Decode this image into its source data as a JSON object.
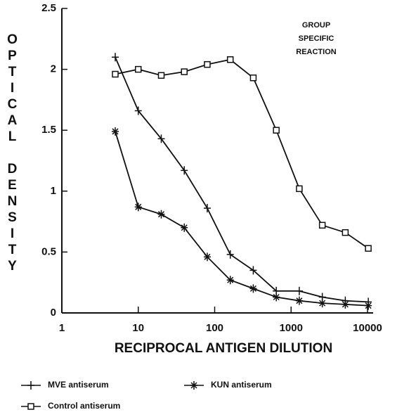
{
  "chart_data": {
    "type": "line",
    "xlabel": "RECIPROCAL ANTIGEN DILUTION",
    "ylabel": "OPTICAL DENSITY",
    "annotation": [
      "GROUP",
      "SPECIFIC",
      "REACTION"
    ],
    "x": [
      5,
      10,
      20,
      40,
      80,
      160,
      320,
      640,
      1280,
      2560,
      5120,
      10240
    ],
    "series": [
      {
        "name": "MVE antiserum",
        "color": "#111111",
        "marker": "plus",
        "values": [
          2.1,
          1.66,
          1.43,
          1.17,
          0.86,
          0.48,
          0.35,
          0.18,
          0.18,
          0.13,
          0.1,
          0.09
        ]
      },
      {
        "name": "KUN antiserum",
        "color": "#111111",
        "marker": "star",
        "values": [
          1.49,
          0.87,
          0.81,
          0.7,
          0.46,
          0.27,
          0.2,
          0.13,
          0.1,
          0.08,
          0.07,
          0.06
        ]
      },
      {
        "name": "Control antiserum",
        "color": "#111111",
        "marker": "square",
        "values": [
          1.96,
          2.0,
          1.95,
          1.98,
          2.04,
          2.08,
          1.93,
          1.5,
          1.02,
          0.72,
          0.66,
          0.53
        ]
      }
    ],
    "xscale": "log",
    "xlim": [
      1,
      10000
    ],
    "xticks": [
      1,
      10,
      100,
      1000,
      10000
    ],
    "ylim": [
      0,
      2.5
    ],
    "yticks": [
      0,
      0.5,
      1,
      1.5,
      2,
      2.5
    ],
    "grid": false
  }
}
